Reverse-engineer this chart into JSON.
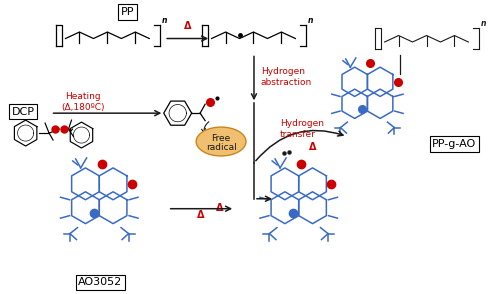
{
  "bg_color": "#ffffff",
  "labels": {
    "PP": "PP",
    "DCP": "DCP",
    "PP_g_AO": "PP-g-AO",
    "AO3052": "AO3052",
    "heating_line1": "Heating",
    "heating_line2": "(Δ,180ºC)",
    "hydrogen_abstraction": "Hydrogen\nabstraction",
    "hydrogen_transfer": "Hydrogen\ntransfer",
    "free_radical_line1": "Free",
    "free_radical_line2": "radical",
    "delta": "Δ"
  },
  "colors": {
    "black": "#1a1a1a",
    "red": "#cc0000",
    "blue": "#3a6bc4",
    "orange_bg": "#f0c070",
    "orange_edge": "#c8861a"
  },
  "layout": {
    "xlim": [
      0,
      10
    ],
    "ylim": [
      0,
      5.88
    ],
    "figw": 5.0,
    "figh": 2.94,
    "dpi": 100
  }
}
